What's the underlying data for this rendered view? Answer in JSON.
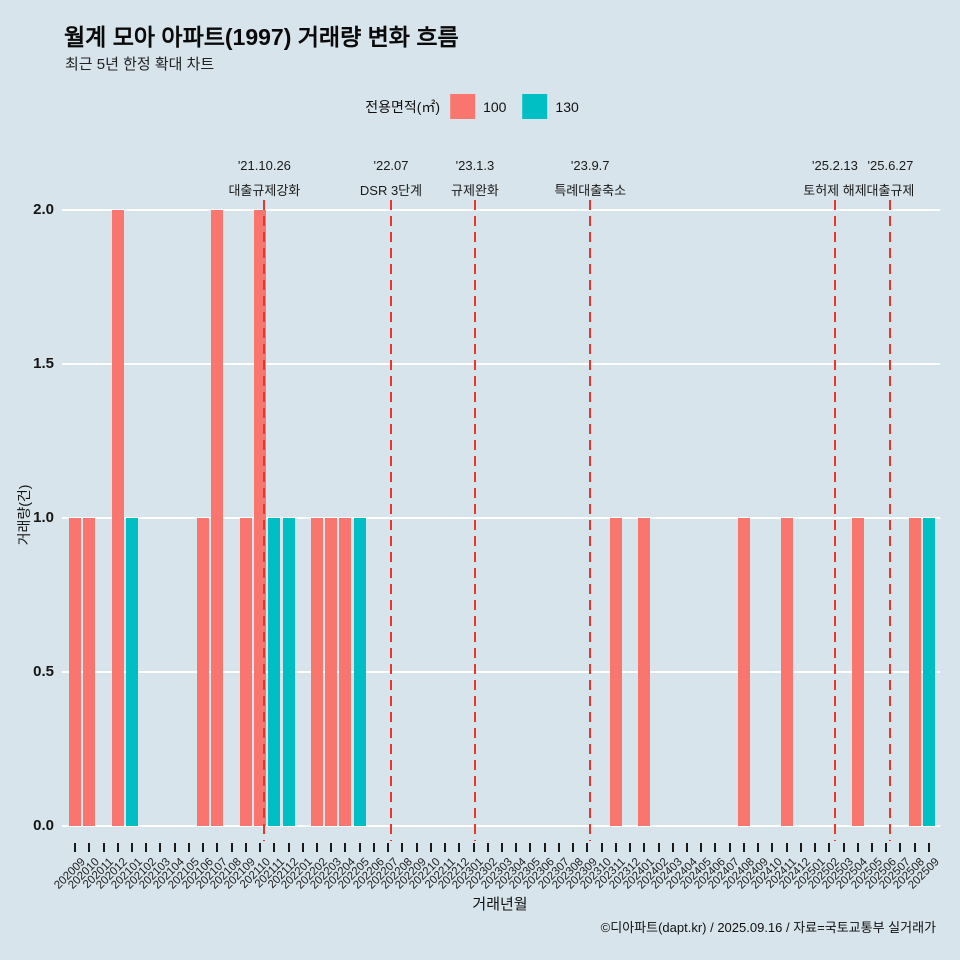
{
  "title": "월계 모아 아파트(1997) 거래량 변화 흐름",
  "subtitle": "최근 5년 한정 확대 차트",
  "legend": {
    "label": "전용면적(㎡)",
    "items": [
      {
        "name": "100",
        "color": "#F8766D"
      },
      {
        "name": "130",
        "color": "#00BFC4"
      }
    ]
  },
  "footer": "©디아파트(dapt.kr) / 2025.09.16 / 자료=국토교통부 실거래가",
  "colors": {
    "background": "#d8e4eb",
    "grid": "#ffffff",
    "annotation_line": "#e8362d",
    "series_100": "#F8766D",
    "series_130": "#00BFC4"
  },
  "chart_data": {
    "type": "bar",
    "title": "월계 모아 아파트(1997) 거래량 변화 흐름",
    "xlabel": "거래년월",
    "ylabel": "거래량(건)",
    "ylim": [
      0,
      2
    ],
    "yticks": [
      0,
      0.5,
      1,
      1.5,
      2
    ],
    "grid": true,
    "legend_position": "top",
    "categories": [
      "202009",
      "202010",
      "202011",
      "202012",
      "202101",
      "202102",
      "202103",
      "202104",
      "202105",
      "202106",
      "202107",
      "202108",
      "202109",
      "202110",
      "202111",
      "202112",
      "202201",
      "202202",
      "202203",
      "202204",
      "202205",
      "202206",
      "202207",
      "202208",
      "202209",
      "202210",
      "202211",
      "202212",
      "202301",
      "202302",
      "202303",
      "202304",
      "202305",
      "202306",
      "202307",
      "202308",
      "202309",
      "202310",
      "202311",
      "202312",
      "202401",
      "202402",
      "202403",
      "202404",
      "202405",
      "202406",
      "202407",
      "202408",
      "202409",
      "202410",
      "202411",
      "202412",
      "202501",
      "202502",
      "202503",
      "202504",
      "202505",
      "202506",
      "202507",
      "202508",
      "202509"
    ],
    "series": [
      {
        "name": "100",
        "color": "#F8766D",
        "values": [
          1,
          1,
          0,
          2,
          0,
          0,
          0,
          0,
          0,
          1,
          2,
          0,
          1,
          2,
          0,
          0,
          0,
          1,
          1,
          1,
          0,
          0,
          0,
          0,
          0,
          0,
          0,
          0,
          0,
          0,
          0,
          0,
          0,
          0,
          0,
          0,
          0,
          0,
          1,
          0,
          1,
          0,
          0,
          0,
          0,
          0,
          0,
          1,
          0,
          0,
          1,
          0,
          0,
          0,
          0,
          1,
          0,
          0,
          0,
          1,
          0
        ]
      },
      {
        "name": "130",
        "color": "#00BFC4",
        "values": [
          0,
          0,
          0,
          0,
          1,
          0,
          0,
          0,
          0,
          0,
          0,
          0,
          0,
          0,
          1,
          1,
          0,
          0,
          0,
          0,
          1,
          0,
          0,
          0,
          0,
          0,
          0,
          0,
          0,
          0,
          0,
          0,
          0,
          0,
          0,
          0,
          0,
          0,
          0,
          0,
          0,
          0,
          0,
          0,
          0,
          0,
          0,
          0,
          0,
          0,
          0,
          0,
          0,
          0,
          0,
          0,
          0,
          0,
          0,
          0,
          1
        ]
      }
    ],
    "annotations": [
      {
        "date": "'21.10.26",
        "label": "대출규제강화",
        "pos": 13.3
      },
      {
        "date": "'22.07",
        "label": "DSR 3단계",
        "pos": 22.2
      },
      {
        "date": "'23.1.3",
        "label": "규제완화",
        "pos": 28.1
      },
      {
        "date": "'23.9.7",
        "label": "특례대출축소",
        "pos": 36.2
      },
      {
        "date": "'25.2.13",
        "label": "토허제 해제",
        "pos": 53.4
      },
      {
        "date": "'25.6.27",
        "label": "대출규제",
        "pos": 57.3
      }
    ]
  }
}
